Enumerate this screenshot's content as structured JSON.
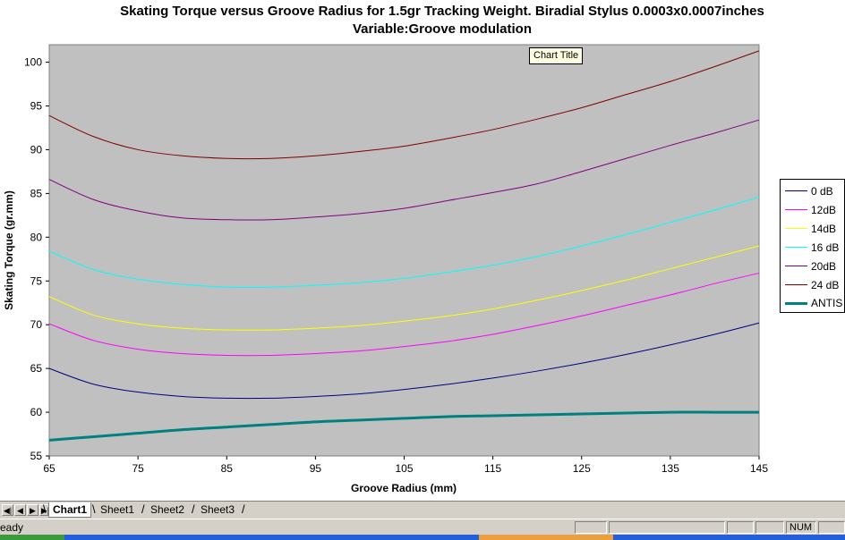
{
  "chart_data": {
    "type": "line",
    "title": "Skating Torque versus Groove Radius for 1.5gr Tracking Weight. Biradial Stylus 0.0003x0.0007inches",
    "subtitle": "Variable:Groove modulation",
    "xlabel": "Groove Radius (mm)",
    "ylabel": "Skating Torque (gr.mm)",
    "xlim": [
      65,
      145
    ],
    "ylim": [
      55,
      102
    ],
    "x_ticks": [
      65,
      75,
      85,
      95,
      105,
      115,
      125,
      135,
      145
    ],
    "y_ticks": [
      55,
      60,
      65,
      70,
      75,
      80,
      85,
      90,
      95,
      100
    ],
    "plot_background": "#c0c0c0",
    "grid": false,
    "legend_position": "right",
    "x": [
      65,
      70,
      75,
      80,
      85,
      90,
      95,
      100,
      105,
      110,
      115,
      120,
      125,
      130,
      135,
      140,
      145
    ],
    "series": [
      {
        "name": "0 dB",
        "color": "#000080",
        "width": 1,
        "values": [
          65.0,
          63.2,
          62.3,
          61.8,
          61.6,
          61.6,
          61.8,
          62.1,
          62.6,
          63.2,
          63.9,
          64.7,
          65.6,
          66.6,
          67.7,
          68.9,
          70.2
        ]
      },
      {
        "name": "12dB",
        "color": "#ff00ff",
        "width": 1,
        "values": [
          70.1,
          68.2,
          67.2,
          66.7,
          66.5,
          66.5,
          66.7,
          67.0,
          67.5,
          68.1,
          68.9,
          69.9,
          71.0,
          72.2,
          73.4,
          74.7,
          75.9
        ]
      },
      {
        "name": "14dB",
        "color": "#ffff00",
        "width": 1,
        "values": [
          73.2,
          71.1,
          70.1,
          69.6,
          69.4,
          69.4,
          69.6,
          69.9,
          70.4,
          71.0,
          71.8,
          72.8,
          73.9,
          75.1,
          76.4,
          77.7,
          79.0
        ]
      },
      {
        "name": "16 dB",
        "color": "#00ffff",
        "width": 1,
        "values": [
          78.4,
          76.3,
          75.2,
          74.6,
          74.3,
          74.3,
          74.5,
          74.8,
          75.3,
          76.0,
          76.8,
          77.8,
          79.0,
          80.3,
          81.7,
          83.1,
          84.6
        ]
      },
      {
        "name": "20dB",
        "color": "#800080",
        "width": 1,
        "values": [
          86.6,
          84.3,
          83.0,
          82.2,
          82.0,
          82.0,
          82.3,
          82.7,
          83.3,
          84.2,
          85.1,
          86.1,
          87.5,
          89.0,
          90.5,
          91.9,
          93.4
        ]
      },
      {
        "name": "24 dB",
        "color": "#800000",
        "width": 1,
        "values": [
          93.9,
          91.5,
          90.0,
          89.3,
          89.0,
          89.0,
          89.3,
          89.8,
          90.4,
          91.3,
          92.3,
          93.5,
          94.8,
          96.3,
          97.8,
          99.5,
          101.3
        ]
      },
      {
        "name": "ANTIS",
        "color": "#008080",
        "width": 3,
        "values": [
          56.8,
          57.2,
          57.6,
          58.0,
          58.3,
          58.6,
          58.9,
          59.1,
          59.3,
          59.5,
          59.6,
          59.7,
          59.8,
          59.9,
          60.0,
          60.0,
          60.0
        ]
      }
    ]
  },
  "tooltip": {
    "text": "Chart Title"
  },
  "sheet_tabs": {
    "nav": [
      "◀|",
      "◀",
      "▶",
      "▶|"
    ],
    "tabs": [
      "Chart1",
      "Sheet1",
      "Sheet2",
      "Sheet3"
    ],
    "active": "Chart1"
  },
  "status_bar": {
    "text": "eady",
    "num_indicator": "NUM"
  }
}
